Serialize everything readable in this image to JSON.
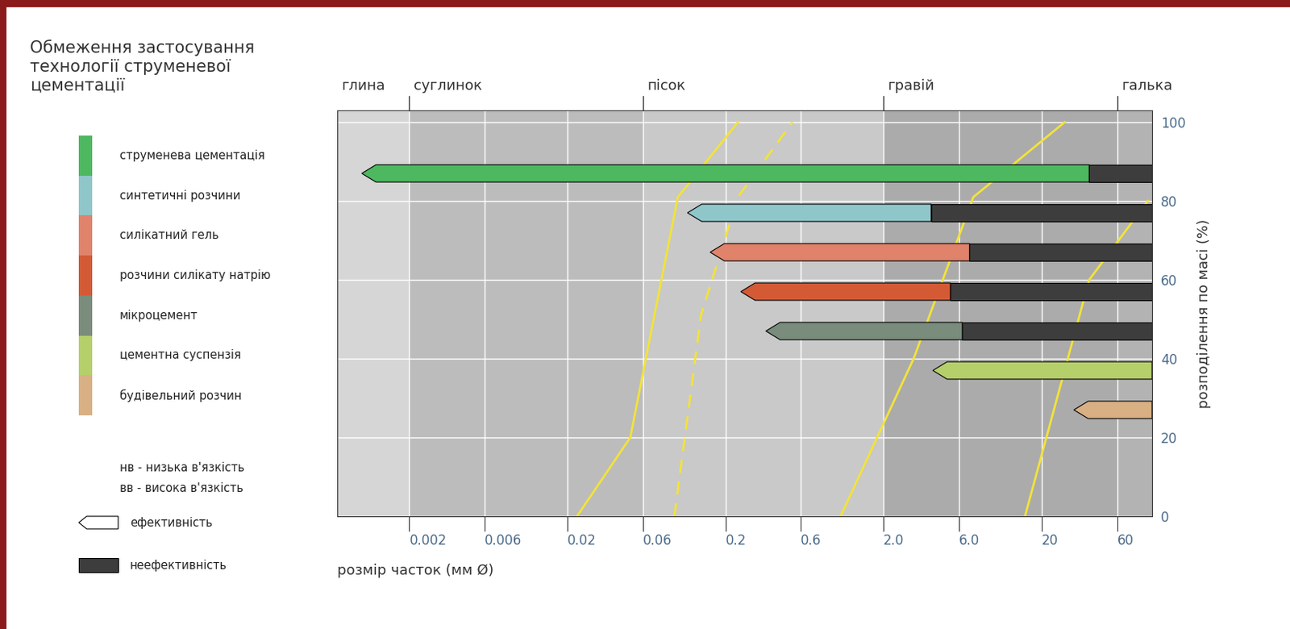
{
  "chart_data": {
    "type": "bar",
    "orientation": "horizontal",
    "log": "x",
    "grid": true,
    "title": "Обмеження застосування\nтехнології струменевої\nцементації",
    "x_label": "розмір часток (мм Ø)",
    "y_label": "розподілення по масі (%)",
    "xlim": [
      0.0007,
      100
    ],
    "xticks": [
      0.002,
      0.006,
      0.02,
      0.06,
      0.2,
      0.6,
      {
        "value": 2.0,
        "label": "2.0"
      },
      {
        "value": 6.0,
        "label": "6.0"
      },
      20,
      60
    ],
    "ylim": [
      0,
      103
    ],
    "yticks": [
      0,
      20,
      40,
      60,
      80,
      100
    ],
    "zones": [
      {
        "label": "глина",
        "start": 0.0007
      },
      {
        "label": "суглинок",
        "start": 0.002
      },
      {
        "label": "пісок",
        "start": 0.06
      },
      {
        "label": "гравій",
        "start": 2.0
      },
      {
        "label": "галька",
        "start": 60
      }
    ],
    "series": [
      {
        "name": "струменева цементація",
        "color": "#4db85f",
        "y": 87,
        "effective": [
          0.001,
          40
        ],
        "ineffective": [
          40,
          100
        ]
      },
      {
        "name": "синтетичні розчини",
        "color": "#8fc6c9",
        "y": 77,
        "effective": [
          0.115,
          4
        ],
        "ineffective": [
          4,
          100
        ]
      },
      {
        "name": "силікатний гель",
        "color": "#e0836a",
        "y": 67,
        "effective": [
          0.16,
          7
        ],
        "ineffective": [
          7,
          100
        ]
      },
      {
        "name": "розчини силікату натрію",
        "color": "#d35a35",
        "y": 57,
        "effective": [
          0.25,
          5.3
        ],
        "ineffective": [
          5.3,
          100
        ]
      },
      {
        "name": "мікроцемент",
        "color": "#7a8c7c",
        "y": 47,
        "effective": [
          0.36,
          6.3
        ],
        "ineffective": [
          6.3,
          100
        ]
      },
      {
        "name": "цементна суспензія",
        "color": "#b5cf6b",
        "y": 37,
        "effective": [
          4.1,
          100
        ]
      },
      {
        "name": "будівельний розчин",
        "color": "#d9b083",
        "y": 27,
        "effective": [
          32,
          100
        ]
      }
    ],
    "curves": [
      {
        "color": "#f2e33a",
        "line_style": "solid",
        "x": [
          0.023,
          0.05,
          0.071,
          0.1,
          0.24
        ],
        "y": [
          0,
          20,
          51,
          81,
          100
        ]
      },
      {
        "color": "#f2e33a",
        "line_style": "dashed",
        "x": [
          0.095,
          0.14,
          0.24,
          0.53
        ],
        "y": [
          0,
          51,
          81,
          100
        ]
      },
      {
        "color": "#f2e33a",
        "line_style": "solid",
        "x": [
          1.07,
          3.1,
          7.4,
          28
        ],
        "y": [
          0,
          40,
          81,
          100
        ]
      },
      {
        "color": "#f2e33a",
        "line_style": "solid",
        "x": [
          15.7,
          40,
          94
        ],
        "y": [
          0,
          60,
          80
        ]
      }
    ],
    "notes": [
      "нв - низька в'язкість",
      "вв - висока в'язкість"
    ],
    "key": {
      "effective": "ефективність",
      "ineffective": "неефективність"
    }
  }
}
